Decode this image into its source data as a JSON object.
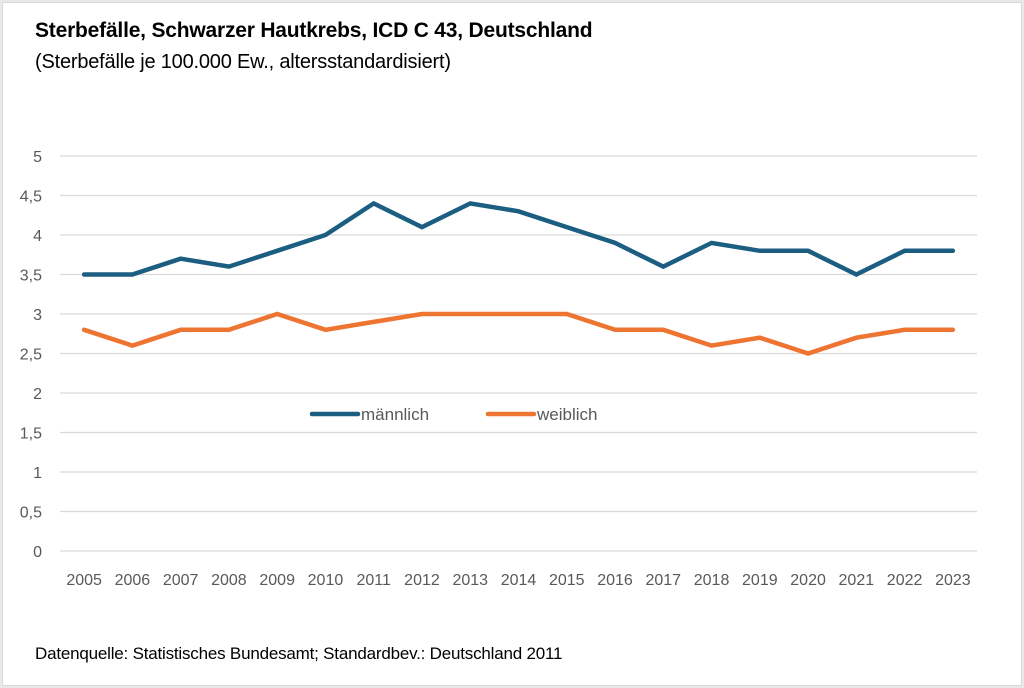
{
  "chart_data": {
    "type": "line",
    "title": "Sterbefälle, Schwarzer Hautkrebs, ICD C 43, Deutschland",
    "subtitle": "(Sterbefälle je 100.000 Ew., altersstandardisiert)",
    "source": "Datenquelle: Statistisches Bundesamt; Standardbev.: Deutschland 2011",
    "xlabel": "",
    "ylabel": "",
    "x": [
      "2005",
      "2006",
      "2007",
      "2008",
      "2009",
      "2010",
      "2011",
      "2012",
      "2013",
      "2014",
      "2015",
      "2016",
      "2017",
      "2018",
      "2019",
      "2020",
      "2021",
      "2022",
      "2023"
    ],
    "ylim": [
      0,
      5
    ],
    "yticks": [
      0,
      0.5,
      1,
      1.5,
      2,
      2.5,
      3,
      3.5,
      4,
      4.5,
      5
    ],
    "ytick_labels": [
      "0",
      "0,5",
      "1",
      "1,5",
      "2",
      "2,5",
      "3",
      "3,5",
      "4",
      "4,5",
      "5"
    ],
    "grid": true,
    "legend_position": "center",
    "series": [
      {
        "name": "männlich",
        "color": "#1b5e82",
        "values": [
          3.5,
          3.5,
          3.7,
          3.6,
          3.8,
          4.0,
          4.4,
          4.1,
          4.4,
          4.3,
          4.1,
          3.9,
          3.6,
          3.9,
          3.8,
          3.8,
          3.5,
          3.8,
          3.8
        ]
      },
      {
        "name": "weiblich",
        "color": "#ed7431",
        "values": [
          2.8,
          2.6,
          2.8,
          2.8,
          3.0,
          2.8,
          2.9,
          3.0,
          3.0,
          3.0,
          3.0,
          2.8,
          2.8,
          2.6,
          2.7,
          2.5,
          2.7,
          2.8,
          2.8
        ]
      }
    ]
  }
}
